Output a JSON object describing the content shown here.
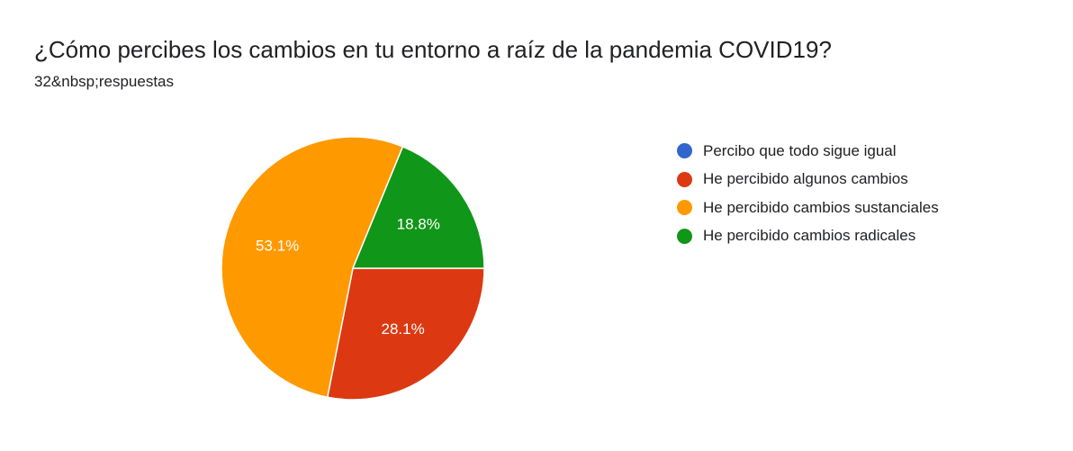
{
  "title": "¿Cómo percibes los cambios en tu entorno a raíz de la pandemia COVID19?",
  "subtitle": "32&nbsp;respuestas",
  "chart_data": {
    "type": "pie",
    "slices": [
      {
        "label": "Percibo que todo sigue igual",
        "value": 0,
        "percent_label": "",
        "color": "#3366cc"
      },
      {
        "label": "He percibido algunos cambios",
        "value": 28.1,
        "percent_label": "28.1%",
        "color": "#dc3912"
      },
      {
        "label": "He percibido cambios sustanciales",
        "value": 53.1,
        "percent_label": "53.1%",
        "color": "#ff9900"
      },
      {
        "label": "He percibido cambios radicales",
        "value": 18.8,
        "percent_label": "18.8%",
        "color": "#109618"
      }
    ],
    "legend_position": "right"
  }
}
